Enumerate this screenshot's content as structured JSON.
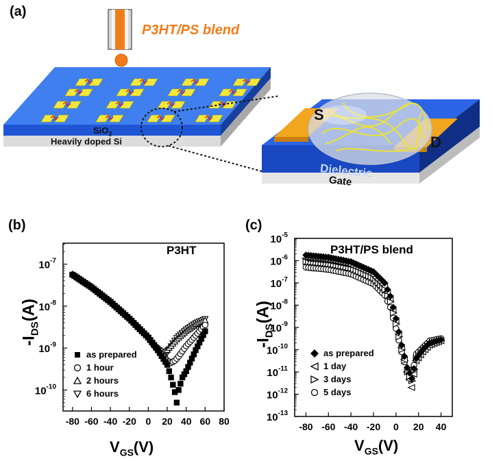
{
  "panel_a": {
    "label": "(a)",
    "ink_label": "P3HT/PS blend",
    "substrate": {
      "oxide": "SiO",
      "oxide_sub": "2",
      "si": "Heavily doped Si"
    },
    "device": {
      "source": "S",
      "drain": "D",
      "dielectric": "Dielectric",
      "gate": "Gate"
    },
    "colors": {
      "orange": "#f07d1a",
      "blue": "#1e56d6",
      "gold": "#f2a51e",
      "yellow": "#e8e23a"
    }
  },
  "panel_b": {
    "label": "(b)",
    "title": "P3HT",
    "xlabel_main": "V",
    "xlabel_sub": "GS",
    "xlabel_unit": "(V)",
    "ylabel_main": "-I",
    "ylabel_sub": "DS",
    "ylabel_unit": "(A)",
    "legend": [
      "as prepared",
      "1 hour",
      "2 hours",
      "6 hours"
    ]
  },
  "panel_c": {
    "label": "(c)",
    "title": "P3HT/PS  blend",
    "xlabel_main": "V",
    "xlabel_sub": "GS",
    "xlabel_unit": "(V)",
    "ylabel_main": "-I",
    "ylabel_sub": "DS",
    "ylabel_unit": "(A)",
    "legend": [
      "as prepared",
      "1 day",
      "3 days",
      "5 days"
    ]
  },
  "chart_data": [
    {
      "type": "scatter",
      "title": "P3HT",
      "xlabel": "VGS (V)",
      "ylabel": "-IDS (A)",
      "xlim": [
        -90,
        80
      ],
      "ylim_log10": [
        -10.5,
        -6.5
      ],
      "yscale": "log",
      "xticks": [
        "-80",
        "-60",
        "-40",
        "-20",
        "0",
        "20",
        "40",
        "60",
        "80"
      ],
      "yticks": [
        "10^-10",
        "10^-9",
        "10^-8",
        "10^-7"
      ],
      "legend_position": "lower-left",
      "series": [
        {
          "name": "as prepared",
          "marker": "filled-square",
          "x": [
            -80,
            -60,
            -40,
            -20,
            0,
            10,
            20,
            24,
            28,
            30,
            32,
            36,
            40,
            50,
            60
          ],
          "log10_y": [
            -7.25,
            -7.55,
            -7.9,
            -8.3,
            -8.75,
            -9.05,
            -9.4,
            -9.7,
            -10.05,
            -10.3,
            -10.0,
            -9.7,
            -9.55,
            -9.05,
            -8.6
          ]
        },
        {
          "name": "1 hour",
          "marker": "open-circle",
          "x": [
            -80,
            -60,
            -40,
            -20,
            0,
            10,
            16,
            20,
            24,
            28,
            32,
            40,
            50,
            60
          ],
          "log10_y": [
            -7.25,
            -7.55,
            -7.9,
            -8.3,
            -8.75,
            -9.05,
            -9.2,
            -9.3,
            -9.35,
            -9.3,
            -9.2,
            -8.95,
            -8.7,
            -8.45
          ]
        },
        {
          "name": "2 hours",
          "marker": "open-triangle-up",
          "x": [
            -80,
            -60,
            -40,
            -20,
            0,
            10,
            16,
            20,
            24,
            30,
            40,
            50,
            60
          ],
          "log10_y": [
            -7.25,
            -7.55,
            -7.9,
            -8.3,
            -8.75,
            -9.0,
            -9.1,
            -9.05,
            -8.95,
            -8.8,
            -8.6,
            -8.45,
            -8.35
          ]
        },
        {
          "name": "6 hours",
          "marker": "open-triangle-down",
          "x": [
            -80,
            -60,
            -40,
            -20,
            0,
            10,
            16,
            20,
            24,
            30,
            40,
            50,
            60
          ],
          "log10_y": [
            -7.25,
            -7.55,
            -7.9,
            -8.3,
            -8.75,
            -9.05,
            -9.2,
            -9.1,
            -8.95,
            -8.75,
            -8.55,
            -8.4,
            -8.3
          ]
        }
      ]
    },
    {
      "type": "scatter",
      "title": "P3HT/PS  blend",
      "xlabel": "VGS (V)",
      "ylabel": "-IDS (A)",
      "xlim": [
        -90,
        50
      ],
      "ylim_log10": [
        -13,
        -5
      ],
      "yscale": "log",
      "xticks": [
        "-80",
        "-60",
        "-40",
        "-20",
        "0",
        "20",
        "40"
      ],
      "yticks": [
        "10^-13",
        "10^-12",
        "10^-11",
        "10^-10",
        "10^-9",
        "10^-8",
        "10^-7",
        "10^-6",
        "10^-5"
      ],
      "legend_position": "lower-left",
      "series": [
        {
          "name": "as prepared",
          "marker": "filled-diamond",
          "x": [
            -80,
            -60,
            -40,
            -20,
            -10,
            -5,
            0,
            5,
            10,
            14,
            18,
            24,
            30,
            40
          ],
          "log10_y": [
            -5.75,
            -5.85,
            -6.05,
            -6.5,
            -7.0,
            -7.6,
            -8.6,
            -9.8,
            -10.8,
            -11.3,
            -10.4,
            -10.0,
            -9.7,
            -9.55
          ]
        },
        {
          "name": "1 day",
          "marker": "open-triangle-left",
          "x": [
            -80,
            -60,
            -40,
            -20,
            -10,
            -5,
            0,
            5,
            10,
            14,
            18,
            24,
            30,
            40
          ],
          "log10_y": [
            -5.9,
            -6.0,
            -6.2,
            -6.65,
            -7.15,
            -7.7,
            -8.7,
            -9.9,
            -11.0,
            -11.7,
            -10.5,
            -10.1,
            -9.8,
            -9.6
          ]
        },
        {
          "name": "3 days",
          "marker": "open-triangle-right",
          "x": [
            -80,
            -60,
            -40,
            -20,
            -10,
            -5,
            0,
            5,
            10,
            14,
            18,
            24,
            30,
            40
          ],
          "log10_y": [
            -6.05,
            -6.15,
            -6.35,
            -6.8,
            -7.3,
            -7.85,
            -8.85,
            -10.0,
            -11.0,
            -11.4,
            -10.4,
            -10.0,
            -9.75,
            -9.6
          ]
        },
        {
          "name": "5 days",
          "marker": "open-circle",
          "x": [
            -80,
            -60,
            -40,
            -20,
            -10,
            -5,
            0,
            5,
            10,
            14,
            18,
            24,
            30,
            40
          ],
          "log10_y": [
            -6.3,
            -6.4,
            -6.6,
            -7.05,
            -7.55,
            -8.1,
            -9.05,
            -10.1,
            -11.0,
            -11.2,
            -10.2,
            -9.9,
            -9.6,
            -9.5
          ]
        }
      ]
    }
  ]
}
